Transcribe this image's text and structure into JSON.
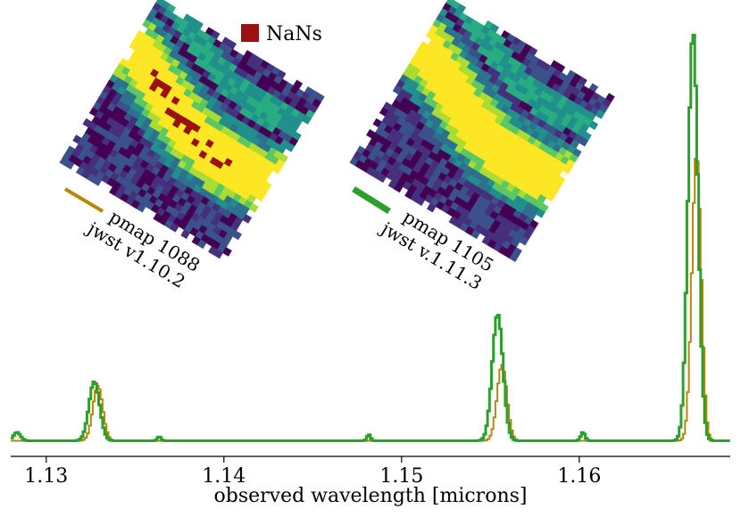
{
  "chart_data": {
    "type": "line",
    "title": "",
    "xlabel": "observed wavelength [microns]",
    "ylabel": "",
    "xlim": [
      1.128,
      1.1685
    ],
    "ylim": [
      0,
      1.0
    ],
    "xticks": [
      1.13,
      1.14,
      1.15,
      1.16
    ],
    "xtick_labels": [
      "1.13",
      "1.14",
      "1.15",
      "1.16"
    ],
    "grid": false,
    "series": [
      {
        "name": "pmap 1088 / jwst v1.10.2",
        "color": "#b8860b",
        "baseline": 0.02,
        "peaks": [
          {
            "center": 1.13285,
            "height": 0.13,
            "sigma": 0.00028
          },
          {
            "center": 1.1556,
            "height": 0.18,
            "sigma": 0.00028
          },
          {
            "center": 1.16655,
            "height": 0.68,
            "sigma": 0.00026
          }
        ]
      },
      {
        "name": "pmap 1105 / jwst v.1.11.3",
        "color": "#2ca02c",
        "baseline": 0.02,
        "peaks": [
          {
            "center": 1.1283,
            "height": 0.02,
            "sigma": 0.0002
          },
          {
            "center": 1.13265,
            "height": 0.14,
            "sigma": 0.0003
          },
          {
            "center": 1.1363,
            "height": 0.01,
            "sigma": 0.0001
          },
          {
            "center": 1.1481,
            "height": 0.015,
            "sigma": 0.0001
          },
          {
            "center": 1.15535,
            "height": 0.3,
            "sigma": 0.0003
          },
          {
            "center": 1.16015,
            "height": 0.02,
            "sigma": 0.00012
          },
          {
            "center": 1.16635,
            "height": 0.97,
            "sigma": 0.00028
          }
        ]
      }
    ],
    "legend": {
      "label": "NaNs",
      "color": "#9b1111"
    },
    "insets": [
      {
        "name": "map-1088",
        "caption_line1": "pmap 1088",
        "caption_line2": "jwst v1.10.2",
        "color": "#b8860b",
        "has_nans": true
      },
      {
        "name": "map-1105",
        "caption_line1": "pmap 1105",
        "caption_line2": "jwst v.1.11.3",
        "color": "#2ca02c",
        "has_nans": false
      }
    ]
  }
}
